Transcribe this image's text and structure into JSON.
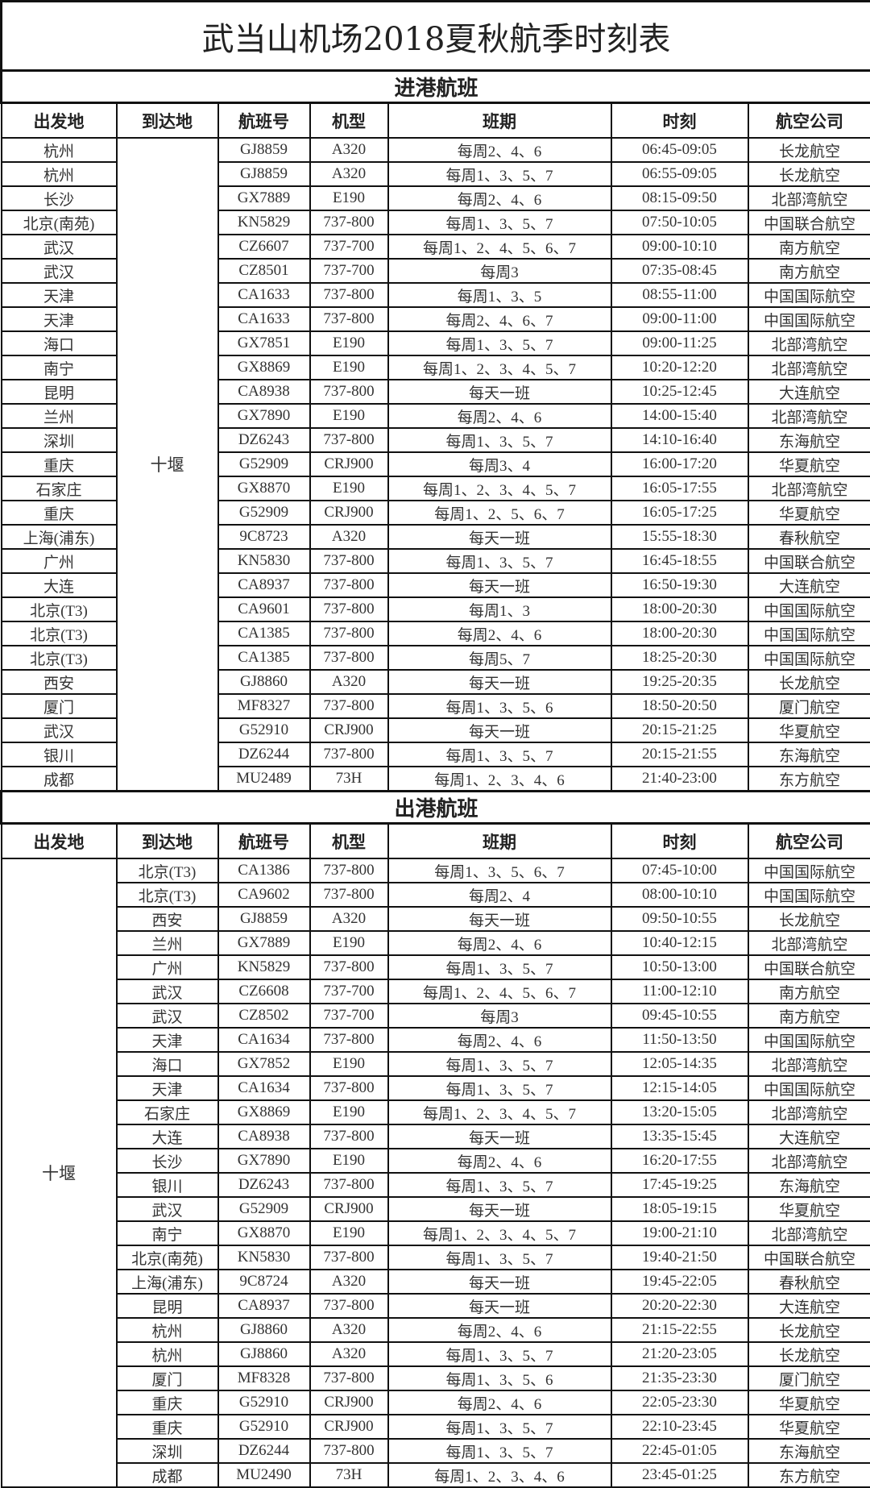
{
  "title": "武当山机场2018夏秋航季时刻表",
  "columns": [
    "出发地",
    "到达地",
    "航班号",
    "机型",
    "班期",
    "时刻",
    "航空公司"
  ],
  "inbound": {
    "label": "进港航班",
    "destination": "十堰",
    "rows": [
      [
        "杭州",
        "GJ8859",
        "A320",
        "每周2、4、6",
        "06:45-09:05",
        "长龙航空"
      ],
      [
        "杭州",
        "GJ8859",
        "A320",
        "每周1、3、5、7",
        "06:55-09:05",
        "长龙航空"
      ],
      [
        "长沙",
        "GX7889",
        "E190",
        "每周2、4、6",
        "08:15-09:50",
        "北部湾航空"
      ],
      [
        "北京(南苑)",
        "KN5829",
        "737-800",
        "每周1、3、5、7",
        "07:50-10:05",
        "中国联合航空"
      ],
      [
        "武汉",
        "CZ6607",
        "737-700",
        "每周1、2、4、5、6、7",
        "09:00-10:10",
        "南方航空"
      ],
      [
        "武汉",
        "CZ8501",
        "737-700",
        "每周3",
        "07:35-08:45",
        "南方航空"
      ],
      [
        "天津",
        "CA1633",
        "737-800",
        "每周1、3、5",
        "08:55-11:00",
        "中国国际航空"
      ],
      [
        "天津",
        "CA1633",
        "737-800",
        "每周2、4、6、7",
        "09:00-11:00",
        "中国国际航空"
      ],
      [
        "海口",
        "GX7851",
        "E190",
        "每周1、3、5、7",
        "09:00-11:25",
        "北部湾航空"
      ],
      [
        "南宁",
        "GX8869",
        "E190",
        "每周1、2、3、4、5、7",
        "10:20-12:20",
        "北部湾航空"
      ],
      [
        "昆明",
        "CA8938",
        "737-800",
        "每天一班",
        "10:25-12:45",
        "大连航空"
      ],
      [
        "兰州",
        "GX7890",
        "E190",
        "每周2、4、6",
        "14:00-15:40",
        "北部湾航空"
      ],
      [
        "深圳",
        "DZ6243",
        "737-800",
        "每周1、3、5、7",
        "14:10-16:40",
        "东海航空"
      ],
      [
        "重庆",
        "G52909",
        "CRJ900",
        "每周3、4",
        "16:00-17:20",
        "华夏航空"
      ],
      [
        "石家庄",
        "GX8870",
        "E190",
        "每周1、2、3、4、5、7",
        "16:05-17:55",
        "北部湾航空"
      ],
      [
        "重庆",
        "G52909",
        "CRJ900",
        "每周1、2、5、6、7",
        "16:05-17:25",
        "华夏航空"
      ],
      [
        "上海(浦东)",
        "9C8723",
        "A320",
        "每天一班",
        "15:55-18:30",
        "春秋航空"
      ],
      [
        "广州",
        "KN5830",
        "737-800",
        "每周1、3、5、7",
        "16:45-18:55",
        "中国联合航空"
      ],
      [
        "大连",
        "CA8937",
        "737-800",
        "每天一班",
        "16:50-19:30",
        "大连航空"
      ],
      [
        "北京(T3)",
        "CA9601",
        "737-800",
        "每周1、3",
        "18:00-20:30",
        "中国国际航空"
      ],
      [
        "北京(T3)",
        "CA1385",
        "737-800",
        "每周2、4、6",
        "18:00-20:30",
        "中国国际航空"
      ],
      [
        "北京(T3)",
        "CA1385",
        "737-800",
        "每周5、7",
        "18:25-20:30",
        "中国国际航空"
      ],
      [
        "西安",
        "GJ8860",
        "A320",
        "每天一班",
        "19:25-20:35",
        "长龙航空"
      ],
      [
        "厦门",
        "MF8327",
        "737-800",
        "每周1、3、5、6",
        "18:50-20:50",
        "厦门航空"
      ],
      [
        "武汉",
        "G52910",
        "CRJ900",
        "每天一班",
        "20:15-21:25",
        "华夏航空"
      ],
      [
        "银川",
        "DZ6244",
        "737-800",
        "每周1、3、5、7",
        "20:15-21:55",
        "东海航空"
      ],
      [
        "成都",
        "MU2489",
        "73H",
        "每周1、2、3、4、6",
        "21:40-23:00",
        "东方航空"
      ]
    ]
  },
  "outbound": {
    "label": "出港航班",
    "origin": "十堰",
    "rows": [
      [
        "北京(T3)",
        "CA1386",
        "737-800",
        "每周1、3、5、6、7",
        "07:45-10:00",
        "中国国际航空"
      ],
      [
        "北京(T3)",
        "CA9602",
        "737-800",
        "每周2、4",
        "08:00-10:10",
        "中国国际航空"
      ],
      [
        "西安",
        "GJ8859",
        "A320",
        "每天一班",
        "09:50-10:55",
        "长龙航空"
      ],
      [
        "兰州",
        "GX7889",
        "E190",
        "每周2、4、6",
        "10:40-12:15",
        "北部湾航空"
      ],
      [
        "广州",
        "KN5829",
        "737-800",
        "每周1、3、5、7",
        "10:50-13:00",
        "中国联合航空"
      ],
      [
        "武汉",
        "CZ6608",
        "737-700",
        "每周1、2、4、5、6、7",
        "11:00-12:10",
        "南方航空"
      ],
      [
        "武汉",
        "CZ8502",
        "737-700",
        "每周3",
        "09:45-10:55",
        "南方航空"
      ],
      [
        "天津",
        "CA1634",
        "737-800",
        "每周2、4、6",
        "11:50-13:50",
        "中国国际航空"
      ],
      [
        "海口",
        "GX7852",
        "E190",
        "每周1、3、5、7",
        "12:05-14:35",
        "北部湾航空"
      ],
      [
        "天津",
        "CA1634",
        "737-800",
        "每周1、3、5、7",
        "12:15-14:05",
        "中国国际航空"
      ],
      [
        "石家庄",
        "GX8869",
        "E190",
        "每周1、2、3、4、5、7",
        "13:20-15:05",
        "北部湾航空"
      ],
      [
        "大连",
        "CA8938",
        "737-800",
        "每天一班",
        "13:35-15:45",
        "大连航空"
      ],
      [
        "长沙",
        "GX7890",
        "E190",
        "每周2、4、6",
        "16:20-17:55",
        "北部湾航空"
      ],
      [
        "银川",
        "DZ6243",
        "737-800",
        "每周1、3、5、7",
        "17:45-19:25",
        "东海航空"
      ],
      [
        "武汉",
        "G52909",
        "CRJ900",
        "每天一班",
        "18:05-19:15",
        "华夏航空"
      ],
      [
        "南宁",
        "GX8870",
        "E190",
        "每周1、2、3、4、5、7",
        "19:00-21:10",
        "北部湾航空"
      ],
      [
        "北京(南苑)",
        "KN5830",
        "737-800",
        "每周1、3、5、7",
        "19:40-21:50",
        "中国联合航空"
      ],
      [
        "上海(浦东)",
        "9C8724",
        "A320",
        "每天一班",
        "19:45-22:05",
        "春秋航空"
      ],
      [
        "昆明",
        "CA8937",
        "737-800",
        "每天一班",
        "20:20-22:30",
        "大连航空"
      ],
      [
        "杭州",
        "GJ8860",
        "A320",
        "每周2、4、6",
        "21:15-22:55",
        "长龙航空"
      ],
      [
        "杭州",
        "GJ8860",
        "A320",
        "每周1、3、5、7",
        "21:20-23:05",
        "长龙航空"
      ],
      [
        "厦门",
        "MF8328",
        "737-800",
        "每周1、3、5、6",
        "21:35-23:30",
        "厦门航空"
      ],
      [
        "重庆",
        "G52910",
        "CRJ900",
        "每周2、4、6",
        "22:05-23:30",
        "华夏航空"
      ],
      [
        "重庆",
        "G52910",
        "CRJ900",
        "每周1、3、5、7",
        "22:10-23:45",
        "华夏航空"
      ],
      [
        "深圳",
        "DZ6244",
        "737-800",
        "每周1、3、5、7",
        "22:45-01:05",
        "东海航空"
      ],
      [
        "成都",
        "MU2490",
        "73H",
        "每周1、2、3、4、6",
        "23:45-01:25",
        "东方航空"
      ]
    ]
  }
}
